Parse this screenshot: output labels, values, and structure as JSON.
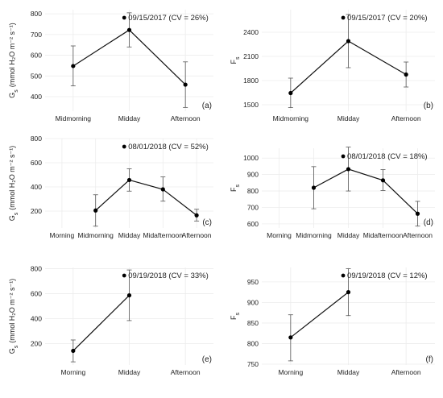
{
  "chart_data": [
    {
      "type": "line",
      "panel_label": "(a)",
      "ylabel_main": "G",
      "ylabel_sub": "s",
      "ylabel_unit": "(mmol H₂O m⁻² s⁻¹)",
      "categories": [
        "Midmorning",
        "Midday",
        "Afternoon"
      ],
      "points": [
        {
          "x": "Midmorning",
          "y": 548,
          "lo": 452,
          "hi": 645
        },
        {
          "x": "Midday",
          "y": 722,
          "lo": 640,
          "hi": 805
        },
        {
          "x": "Afternoon",
          "y": 458,
          "lo": 348,
          "hi": 568
        }
      ],
      "ylim": [
        330,
        820
      ],
      "yticks": [
        400,
        500,
        600,
        700,
        800
      ],
      "legend": "09/15/2017 (CV = 26%)",
      "grid": true
    },
    {
      "type": "line",
      "panel_label": "(b)",
      "ylabel_main": "F",
      "ylabel_sub": "s",
      "ylabel_unit": "",
      "categories": [
        "Midmorning",
        "Midday",
        "Afternoon"
      ],
      "points": [
        {
          "x": "Midmorning",
          "y": 1645,
          "lo": 1465,
          "hi": 1830
        },
        {
          "x": "Midday",
          "y": 2290,
          "lo": 1960,
          "hi": 2620
        },
        {
          "x": "Afternoon",
          "y": 1875,
          "lo": 1720,
          "hi": 2030
        }
      ],
      "ylim": [
        1420,
        2680
      ],
      "yticks": [
        1500,
        1800,
        2100,
        2400
      ],
      "legend": "09/15/2017 (CV = 20%)",
      "grid": true
    },
    {
      "type": "line",
      "panel_label": "(c)",
      "ylabel_main": "G",
      "ylabel_sub": "s",
      "ylabel_unit": "(mmol H₂O m⁻² s⁻¹)",
      "categories": [
        "Morning",
        "Midmorning",
        "Midday",
        "Midafternoon",
        "Afternoon"
      ],
      "points": [
        {
          "x": "Midmorning",
          "y": 205,
          "lo": 75,
          "hi": 335
        },
        {
          "x": "Midday",
          "y": 457,
          "lo": 365,
          "hi": 550
        },
        {
          "x": "Midafternoon",
          "y": 380,
          "lo": 282,
          "hi": 483
        },
        {
          "x": "Afternoon",
          "y": 165,
          "lo": 118,
          "hi": 215
        }
      ],
      "ylim": [
        60,
        800
      ],
      "yticks": [
        200,
        400,
        600,
        800
      ],
      "legend": "08/01/2018 (CV = 52%)",
      "grid": true
    },
    {
      "type": "line",
      "panel_label": "(d)",
      "ylabel_main": "F",
      "ylabel_sub": "s",
      "ylabel_unit": "",
      "categories": [
        "Morning",
        "Midmorning",
        "Midday",
        "Midafternoon",
        "Afternoon"
      ],
      "points": [
        {
          "x": "Midmorning",
          "y": 820,
          "lo": 692,
          "hi": 948
        },
        {
          "x": "Midday",
          "y": 933,
          "lo": 800,
          "hi": 1067
        },
        {
          "x": "Midafternoon",
          "y": 865,
          "lo": 803,
          "hi": 930
        },
        {
          "x": "Afternoon",
          "y": 662,
          "lo": 587,
          "hi": 737
        }
      ],
      "ylim": [
        575,
        1060
      ],
      "yticks": [
        600,
        700,
        800,
        900,
        1000
      ],
      "legend": "08/01/2018 (CV = 18%)",
      "grid": true
    },
    {
      "type": "line",
      "panel_label": "(e)",
      "ylabel_main": "G",
      "ylabel_sub": "s",
      "ylabel_unit": "(mmol H₂O m⁻² s⁻¹)",
      "categories": [
        "Morning",
        "Midday",
        "Afternoon"
      ],
      "points": [
        {
          "x": "Morning",
          "y": 143,
          "lo": 55,
          "hi": 230
        },
        {
          "x": "Midday",
          "y": 587,
          "lo": 385,
          "hi": 790
        }
      ],
      "ylim": [
        30,
        810
      ],
      "yticks": [
        200,
        400,
        600,
        800
      ],
      "legend": "09/19/2018 (CV = 33%)",
      "grid": true
    },
    {
      "type": "line",
      "panel_label": "(f)",
      "ylabel_main": "F",
      "ylabel_sub": "s",
      "ylabel_unit": "",
      "categories": [
        "Morning",
        "Midday",
        "Afternoon"
      ],
      "points": [
        {
          "x": "Morning",
          "y": 815,
          "lo": 758,
          "hi": 870
        },
        {
          "x": "Midday",
          "y": 925,
          "lo": 868,
          "hi": 982
        },
        {
          "x": "Afternoon",
          "y": null,
          "lo": null,
          "hi": null
        }
      ],
      "ylim": [
        748,
        985
      ],
      "yticks": [
        750,
        800,
        850,
        900,
        950
      ],
      "legend": "09/19/2018 (CV = 12%)",
      "grid": true
    }
  ]
}
